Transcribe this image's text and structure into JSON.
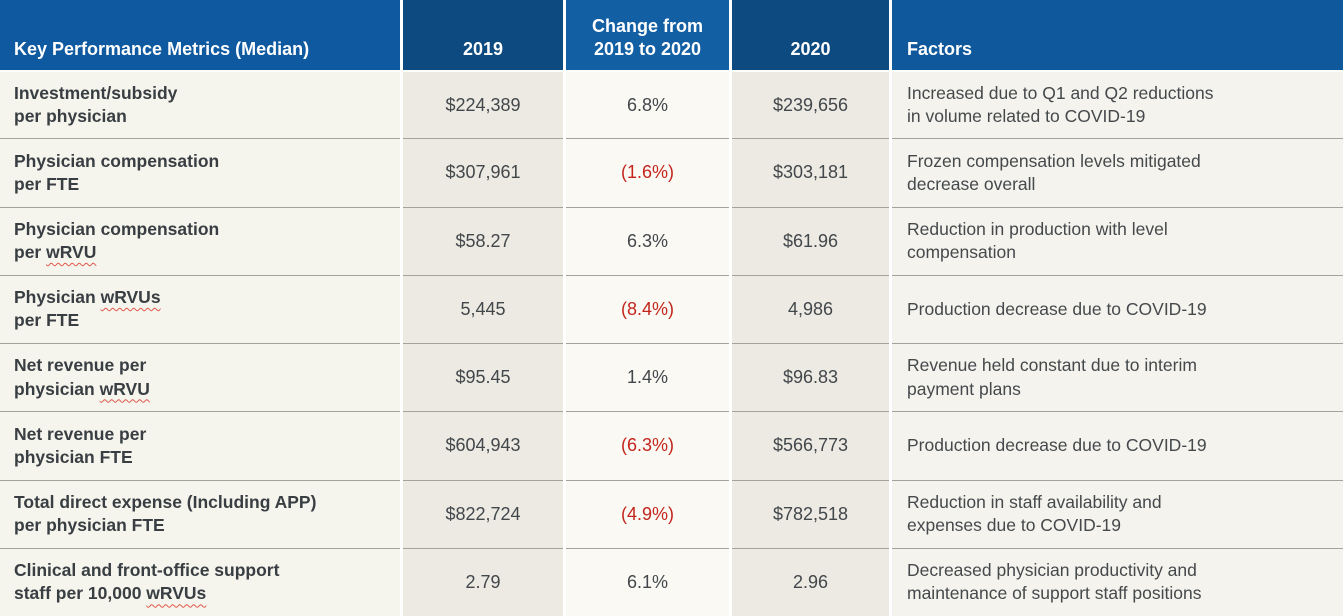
{
  "chart_data": {
    "type": "table",
    "title": "Key Performance Metrics (Median)",
    "columns": [
      "Key Performance Metrics (Median)",
      "2019",
      [
        "Change from",
        "2019 to 2020"
      ],
      "2020",
      "Factors"
    ],
    "rows": [
      {
        "metric": [
          "Investment/subsidy",
          "per physician"
        ],
        "y2019": "$224,389",
        "change": "6.8%",
        "negative": false,
        "y2020": "$239,656",
        "factors": [
          "Increased due to Q1 and Q2 reductions",
          "in volume related to COVID-19"
        ]
      },
      {
        "metric": [
          "Physician compensation",
          "per FTE"
        ],
        "y2019": "$307,961",
        "change": "(1.6%)",
        "negative": true,
        "y2020": "$303,181",
        "factors": [
          "Frozen compensation levels mitigated",
          "decrease overall"
        ]
      },
      {
        "metric": [
          "Physician compensation",
          "per wRVU"
        ],
        "y2019": "$58.27",
        "change": "6.3%",
        "negative": false,
        "y2020": "$61.96",
        "factors": [
          "Reduction in production with level",
          "compensation"
        ]
      },
      {
        "metric": [
          "Physician wRVUs",
          "per FTE"
        ],
        "y2019": "5,445",
        "change": "(8.4%)",
        "negative": true,
        "y2020": "4,986",
        "factors": [
          "Production decrease due to COVID-19"
        ]
      },
      {
        "metric": [
          "Net revenue per",
          "physician wRVU"
        ],
        "y2019": "$95.45",
        "change": "1.4%",
        "negative": false,
        "y2020": "$96.83",
        "factors": [
          "Revenue held constant due to interim",
          "payment plans"
        ]
      },
      {
        "metric": [
          "Net revenue per",
          "physician FTE"
        ],
        "y2019": "$604,943",
        "change": "(6.3%)",
        "negative": true,
        "y2020": "$566,773",
        "factors": [
          "Production decrease due to COVID-19"
        ]
      },
      {
        "metric": [
          "Total direct expense (Including APP)",
          "per physician FTE"
        ],
        "y2019": "$822,724",
        "change": "(4.9%)",
        "negative": true,
        "y2020": "$782,518",
        "factors": [
          "Reduction in staff availability and",
          "expenses due to COVID-19"
        ]
      },
      {
        "metric": [
          "Clinical and front-office support",
          "staff per 10,000 wRVUs"
        ],
        "y2019": "2.79",
        "change": "6.1%",
        "negative": false,
        "y2020": "2.96",
        "factors": [
          "Decreased physician productivity and",
          "maintenance of support staff positions"
        ]
      }
    ]
  },
  "spellcheck_flagged_words": [
    "wRVUs",
    "wRVU"
  ],
  "colors": {
    "header_blue": "#0E599F",
    "header_blue_dark": "#0D4A80",
    "header_blue_light": "#125FA4",
    "row_bg_light": "#F5F4ED",
    "row_bg_shaded": "#ECEAE2",
    "row_bg_lightest": "#FAF9F4",
    "negative_red": "#C3251C",
    "text_dark": "#383E42",
    "spellcheck_underline_red": "#E0574A"
  }
}
